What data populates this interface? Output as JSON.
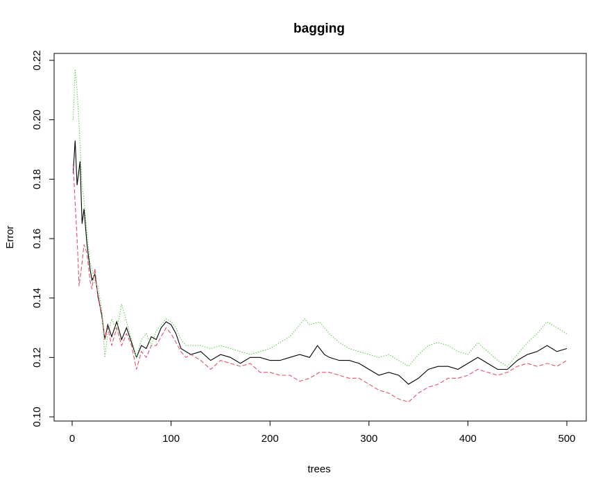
{
  "chart_data": {
    "type": "line",
    "title": "bagging",
    "xlabel": "trees",
    "ylabel": "Error",
    "xlim": [
      0,
      510
    ],
    "ylim": [
      0.1,
      0.22
    ],
    "x_ticks": [
      0,
      100,
      200,
      300,
      400,
      500
    ],
    "y_ticks": [
      0.1,
      0.12,
      0.14,
      0.16,
      0.18,
      0.2,
      0.22
    ],
    "x_tick_labels": [
      "0",
      "100",
      "200",
      "300",
      "400",
      "500"
    ],
    "y_tick_labels": [
      "0.10",
      "0.12",
      "0.14",
      "0.16",
      "0.18",
      "0.20",
      "0.22"
    ],
    "grid": false,
    "legend": "none",
    "series": [
      {
        "color": "#000000",
        "dash": "solid",
        "points": [
          [
            1,
            0.182
          ],
          [
            3,
            0.193
          ],
          [
            5,
            0.178
          ],
          [
            8,
            0.186
          ],
          [
            10,
            0.165
          ],
          [
            12,
            0.17
          ],
          [
            15,
            0.158
          ],
          [
            18,
            0.15
          ],
          [
            20,
            0.146
          ],
          [
            23,
            0.148
          ],
          [
            26,
            0.141
          ],
          [
            30,
            0.134
          ],
          [
            33,
            0.126
          ],
          [
            36,
            0.131
          ],
          [
            40,
            0.127
          ],
          [
            45,
            0.132
          ],
          [
            50,
            0.126
          ],
          [
            55,
            0.13
          ],
          [
            60,
            0.125
          ],
          [
            65,
            0.12
          ],
          [
            70,
            0.124
          ],
          [
            75,
            0.123
          ],
          [
            80,
            0.127
          ],
          [
            85,
            0.126
          ],
          [
            90,
            0.13
          ],
          [
            95,
            0.132
          ],
          [
            100,
            0.131
          ],
          [
            105,
            0.128
          ],
          [
            110,
            0.123
          ],
          [
            115,
            0.122
          ],
          [
            120,
            0.121
          ],
          [
            130,
            0.122
          ],
          [
            140,
            0.119
          ],
          [
            150,
            0.121
          ],
          [
            160,
            0.12
          ],
          [
            170,
            0.118
          ],
          [
            180,
            0.12
          ],
          [
            190,
            0.12
          ],
          [
            200,
            0.119
          ],
          [
            210,
            0.119
          ],
          [
            220,
            0.12
          ],
          [
            230,
            0.121
          ],
          [
            240,
            0.12
          ],
          [
            248,
            0.124
          ],
          [
            255,
            0.121
          ],
          [
            260,
            0.12
          ],
          [
            270,
            0.119
          ],
          [
            280,
            0.119
          ],
          [
            290,
            0.118
          ],
          [
            300,
            0.116
          ],
          [
            310,
            0.114
          ],
          [
            320,
            0.115
          ],
          [
            330,
            0.114
          ],
          [
            340,
            0.111
          ],
          [
            350,
            0.113
          ],
          [
            360,
            0.116
          ],
          [
            370,
            0.117
          ],
          [
            380,
            0.117
          ],
          [
            390,
            0.116
          ],
          [
            400,
            0.118
          ],
          [
            410,
            0.12
          ],
          [
            420,
            0.118
          ],
          [
            430,
            0.116
          ],
          [
            440,
            0.116
          ],
          [
            450,
            0.119
          ],
          [
            460,
            0.121
          ],
          [
            470,
            0.122
          ],
          [
            480,
            0.124
          ],
          [
            490,
            0.122
          ],
          [
            500,
            0.123
          ]
        ]
      },
      {
        "color": "#DF536B",
        "dash": "dashed",
        "points": [
          [
            1,
            0.185
          ],
          [
            3,
            0.172
          ],
          [
            5,
            0.16
          ],
          [
            7,
            0.144
          ],
          [
            10,
            0.152
          ],
          [
            12,
            0.158
          ],
          [
            15,
            0.155
          ],
          [
            18,
            0.146
          ],
          [
            20,
            0.143
          ],
          [
            23,
            0.15
          ],
          [
            26,
            0.14
          ],
          [
            30,
            0.135
          ],
          [
            33,
            0.126
          ],
          [
            36,
            0.13
          ],
          [
            40,
            0.124
          ],
          [
            45,
            0.13
          ],
          [
            50,
            0.124
          ],
          [
            55,
            0.128
          ],
          [
            60,
            0.124
          ],
          [
            65,
            0.116
          ],
          [
            70,
            0.122
          ],
          [
            75,
            0.12
          ],
          [
            80,
            0.124
          ],
          [
            85,
            0.124
          ],
          [
            90,
            0.127
          ],
          [
            95,
            0.13
          ],
          [
            100,
            0.128
          ],
          [
            105,
            0.125
          ],
          [
            110,
            0.122
          ],
          [
            115,
            0.12
          ],
          [
            120,
            0.121
          ],
          [
            130,
            0.119
          ],
          [
            140,
            0.116
          ],
          [
            150,
            0.119
          ],
          [
            160,
            0.118
          ],
          [
            170,
            0.117
          ],
          [
            180,
            0.118
          ],
          [
            190,
            0.115
          ],
          [
            200,
            0.115
          ],
          [
            210,
            0.114
          ],
          [
            220,
            0.114
          ],
          [
            230,
            0.112
          ],
          [
            240,
            0.113
          ],
          [
            250,
            0.115
          ],
          [
            260,
            0.115
          ],
          [
            270,
            0.114
          ],
          [
            280,
            0.113
          ],
          [
            290,
            0.113
          ],
          [
            300,
            0.111
          ],
          [
            310,
            0.109
          ],
          [
            320,
            0.108
          ],
          [
            330,
            0.106
          ],
          [
            340,
            0.105
          ],
          [
            350,
            0.108
          ],
          [
            360,
            0.11
          ],
          [
            370,
            0.111
          ],
          [
            380,
            0.113
          ],
          [
            390,
            0.113
          ],
          [
            400,
            0.114
          ],
          [
            410,
            0.116
          ],
          [
            420,
            0.115
          ],
          [
            430,
            0.114
          ],
          [
            440,
            0.115
          ],
          [
            450,
            0.117
          ],
          [
            460,
            0.118
          ],
          [
            470,
            0.117
          ],
          [
            480,
            0.118
          ],
          [
            490,
            0.117
          ],
          [
            500,
            0.119
          ]
        ]
      },
      {
        "color": "#61D04F",
        "dash": "dotted",
        "points": [
          [
            1,
            0.2
          ],
          [
            3,
            0.217
          ],
          [
            5,
            0.21
          ],
          [
            7,
            0.198
          ],
          [
            10,
            0.178
          ],
          [
            12,
            0.173
          ],
          [
            15,
            0.162
          ],
          [
            18,
            0.152
          ],
          [
            20,
            0.15
          ],
          [
            23,
            0.145
          ],
          [
            26,
            0.144
          ],
          [
            30,
            0.136
          ],
          [
            33,
            0.12
          ],
          [
            36,
            0.128
          ],
          [
            40,
            0.133
          ],
          [
            45,
            0.129
          ],
          [
            50,
            0.138
          ],
          [
            55,
            0.132
          ],
          [
            60,
            0.126
          ],
          [
            65,
            0.12
          ],
          [
            70,
            0.126
          ],
          [
            75,
            0.128
          ],
          [
            80,
            0.124
          ],
          [
            85,
            0.129
          ],
          [
            90,
            0.131
          ],
          [
            95,
            0.133
          ],
          [
            100,
            0.132
          ],
          [
            105,
            0.13
          ],
          [
            110,
            0.126
          ],
          [
            115,
            0.124
          ],
          [
            120,
            0.124
          ],
          [
            130,
            0.124
          ],
          [
            140,
            0.123
          ],
          [
            150,
            0.124
          ],
          [
            160,
            0.123
          ],
          [
            170,
            0.122
          ],
          [
            180,
            0.121
          ],
          [
            190,
            0.122
          ],
          [
            200,
            0.123
          ],
          [
            210,
            0.125
          ],
          [
            220,
            0.127
          ],
          [
            230,
            0.131
          ],
          [
            235,
            0.133
          ],
          [
            240,
            0.131
          ],
          [
            250,
            0.132
          ],
          [
            260,
            0.128
          ],
          [
            270,
            0.125
          ],
          [
            280,
            0.123
          ],
          [
            290,
            0.122
          ],
          [
            300,
            0.121
          ],
          [
            310,
            0.12
          ],
          [
            320,
            0.121
          ],
          [
            330,
            0.119
          ],
          [
            340,
            0.117
          ],
          [
            350,
            0.121
          ],
          [
            360,
            0.124
          ],
          [
            370,
            0.125
          ],
          [
            380,
            0.124
          ],
          [
            390,
            0.122
          ],
          [
            400,
            0.121
          ],
          [
            410,
            0.125
          ],
          [
            420,
            0.122
          ],
          [
            430,
            0.119
          ],
          [
            440,
            0.117
          ],
          [
            450,
            0.121
          ],
          [
            460,
            0.125
          ],
          [
            470,
            0.128
          ],
          [
            480,
            0.132
          ],
          [
            490,
            0.13
          ],
          [
            500,
            0.128
          ]
        ]
      }
    ]
  }
}
